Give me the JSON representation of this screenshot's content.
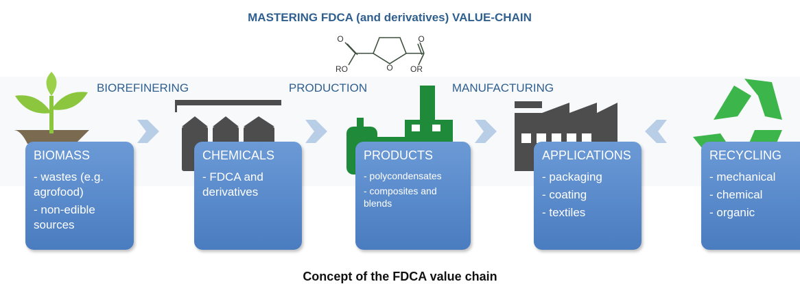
{
  "header": {
    "title": "MASTERING FDCA (and derivatives) VALUE-CHAIN"
  },
  "molecule": {
    "atoms": [
      "O",
      "O",
      "O",
      "RO",
      "OR"
    ]
  },
  "stages": [
    "BIOREFINERING",
    "PRODUCTION",
    "MANUFACTURING"
  ],
  "boxes": [
    {
      "title": "BIOMASS",
      "items": [
        "- wastes (e.g. agrofood)",
        "- non-edible sources"
      ]
    },
    {
      "title": "CHEMICALS",
      "items": [
        "- FDCA and derivatives"
      ]
    },
    {
      "title": "PRODUCTS",
      "items": [
        "- polycondensates",
        "- composites and blends"
      ]
    },
    {
      "title": "APPLICATIONS",
      "items": [
        "- packaging",
        "- coating",
        "- textiles"
      ]
    },
    {
      "title": "RECYCLING",
      "items": [
        "- mechanical",
        "- chemical",
        "- organic"
      ]
    }
  ],
  "caption": "Concept of the FDCA value chain"
}
